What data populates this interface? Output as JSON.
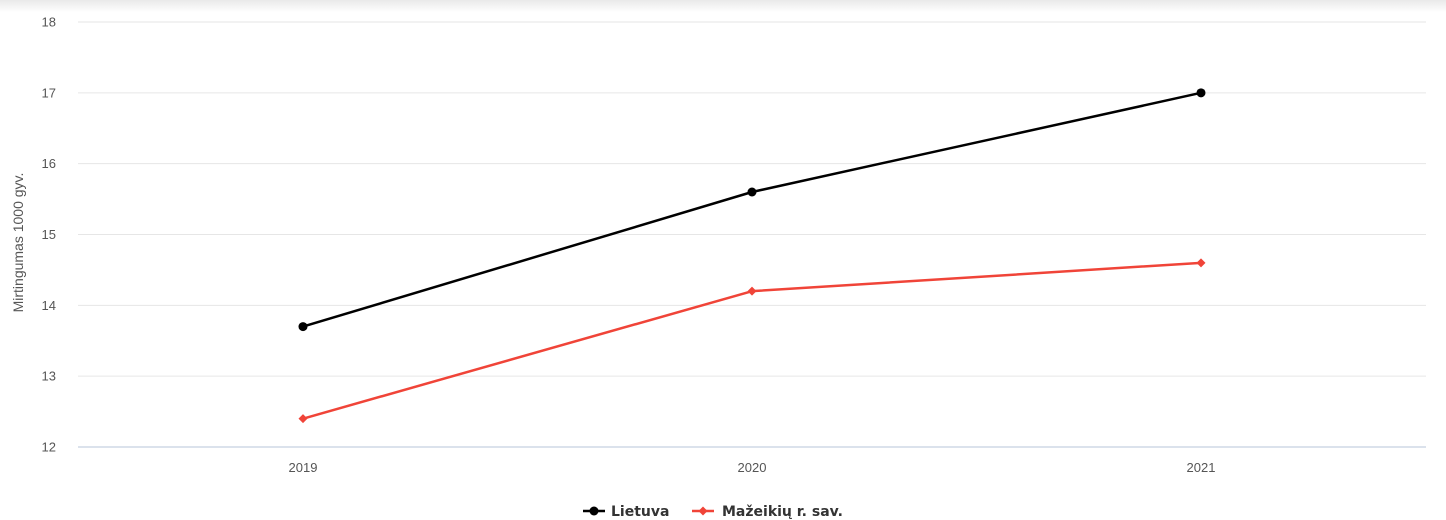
{
  "chart_data": {
    "type": "line",
    "title": "",
    "xlabel": "",
    "ylabel": "Mirtingumas 1000 gyv.",
    "categories": [
      "2019",
      "2020",
      "2021"
    ],
    "ylim": [
      12,
      18
    ],
    "yticks": [
      12,
      13,
      14,
      15,
      16,
      17,
      18
    ],
    "grid": true,
    "legend_position": "bottom-center",
    "series": [
      {
        "name": "Lietuva",
        "values": [
          13.7,
          15.6,
          17.0
        ],
        "color": "#000000",
        "marker": "circle"
      },
      {
        "name": "Mažeikių r. sav.",
        "values": [
          12.4,
          14.2,
          14.6
        ],
        "color": "#f04438",
        "marker": "diamond"
      }
    ]
  }
}
